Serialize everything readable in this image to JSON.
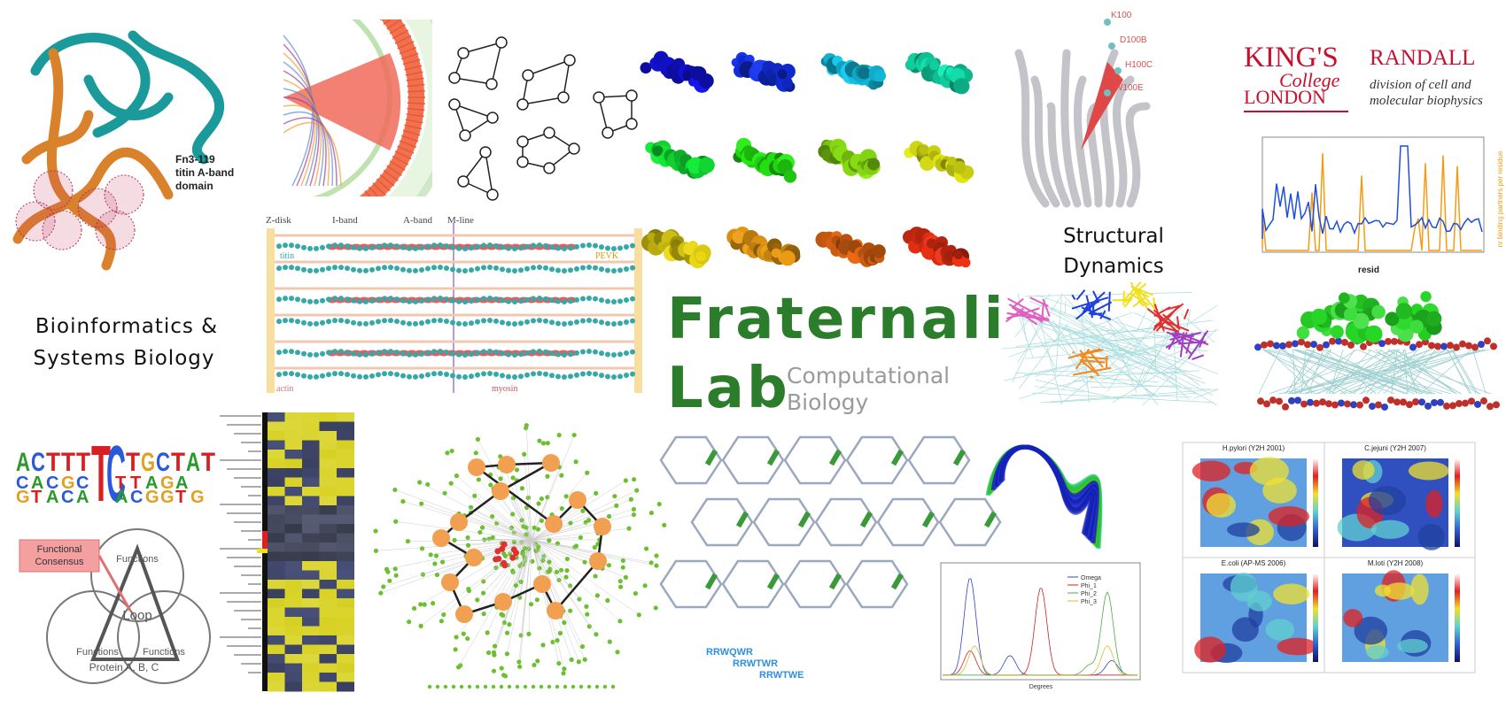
{
  "lab": {
    "name_line1": "Fraternali",
    "name_line2": "Lab",
    "subtitle_line1": "Computational",
    "subtitle_line2": "Biology"
  },
  "sections": {
    "bioinformatics": [
      "Bioinformatics &",
      "Systems Biology"
    ],
    "structural": [
      "Structural",
      "Dynamics"
    ]
  },
  "logos": {
    "kings": [
      "KING'S",
      "College",
      "LONDON"
    ],
    "randall": {
      "name": "RANDALL",
      "description": [
        "division of cell and",
        "molecular biophysics"
      ]
    }
  },
  "protein_label": [
    "Fn3-119",
    "titin A-band",
    "domain"
  ],
  "sarcomere_labels": {
    "top": [
      "Z-disk",
      "I-band",
      "A-band",
      "M-line"
    ],
    "inner": [
      "titin",
      "PEVK",
      "actin",
      "myosin"
    ]
  },
  "mutations": [
    "K100",
    "D100B",
    "H100C",
    "W100E"
  ],
  "binding_plot": {
    "x_label": "resid",
    "y_label": "nr binding partners per residue"
  },
  "venn": {
    "annotation": [
      "Functional",
      "Consensus"
    ],
    "center": "Loop",
    "circle": "Functions",
    "proteins": "Protein A, B, C"
  },
  "peptides": [
    "RRWQWR",
    "RRWTWR",
    "RRWTWE"
  ],
  "angle_plot": {
    "x_label": "Degrees",
    "legend": [
      "Omega",
      "Phi_1",
      "Phi_2",
      "Phi_3"
    ]
  },
  "heatmaps": [
    {
      "title": "H.pylori (Y2H 2001)"
    },
    {
      "title": "C.jejuni (Y2H 2007)"
    },
    {
      "title": "E.coli (AP-MS 2006)"
    },
    {
      "title": "M.loti (Y2H 2008)"
    }
  ]
}
